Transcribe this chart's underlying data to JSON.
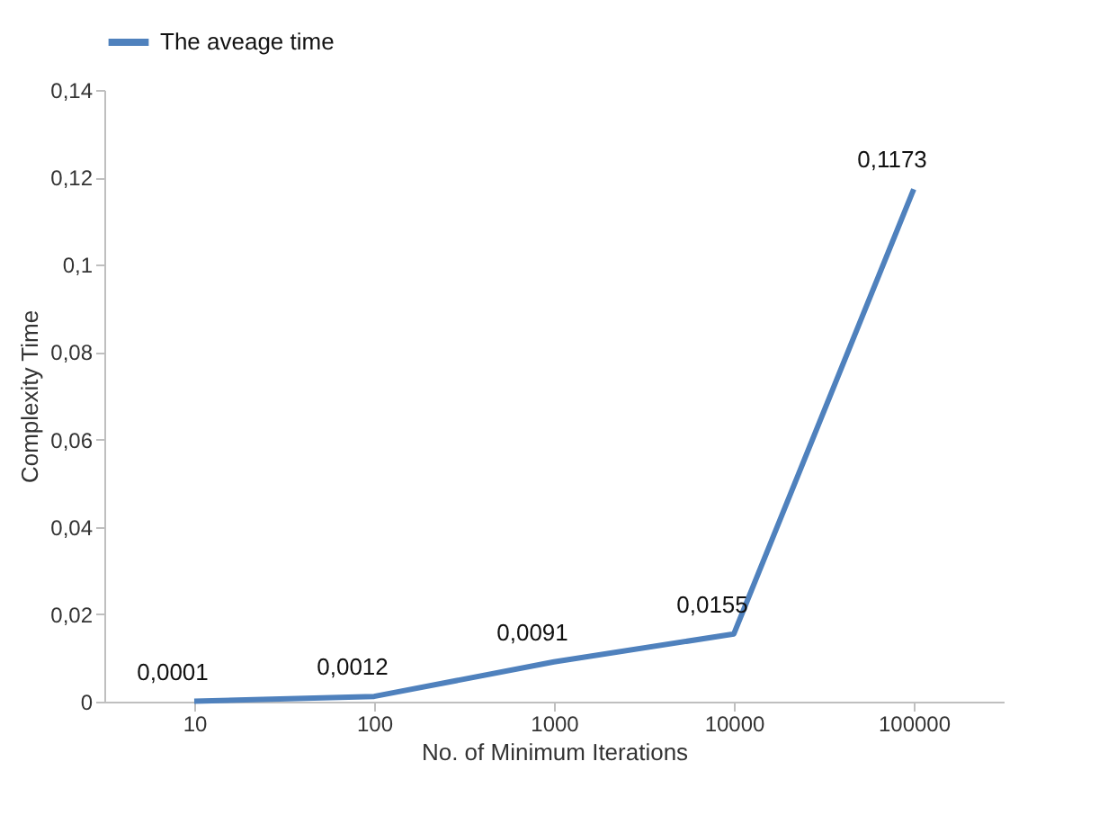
{
  "chart_data": {
    "type": "line",
    "xlabel": "No. of Minimum Iterations",
    "ylabel": "Complexity Time",
    "categories": [
      "10",
      "100",
      "1000",
      "10000",
      "100000"
    ],
    "series": [
      {
        "name": "The aveage time",
        "color": "#4f81bd",
        "values": [
          0.0001,
          0.0012,
          0.0091,
          0.0155,
          0.1173
        ],
        "value_labels": [
          "0,0001",
          "0,0012",
          "0,0091",
          "0,0155",
          "0,1173"
        ]
      }
    ],
    "ylim": [
      0,
      0.14
    ],
    "yticks": [
      0,
      {
        "value": 0.02,
        "label": "0,02"
      },
      {
        "value": 0.04,
        "label": "0,04"
      },
      {
        "value": 0.06,
        "label": "0,06"
      },
      {
        "value": 0.08,
        "label": "0,08"
      },
      {
        "value": 0.1,
        "label": "0,1"
      },
      {
        "value": 0.12,
        "label": "0,12"
      },
      {
        "value": 0.14,
        "label": "0,14"
      }
    ],
    "grid": false,
    "legend": "top",
    "marker": "none",
    "line_style": "solid"
  }
}
